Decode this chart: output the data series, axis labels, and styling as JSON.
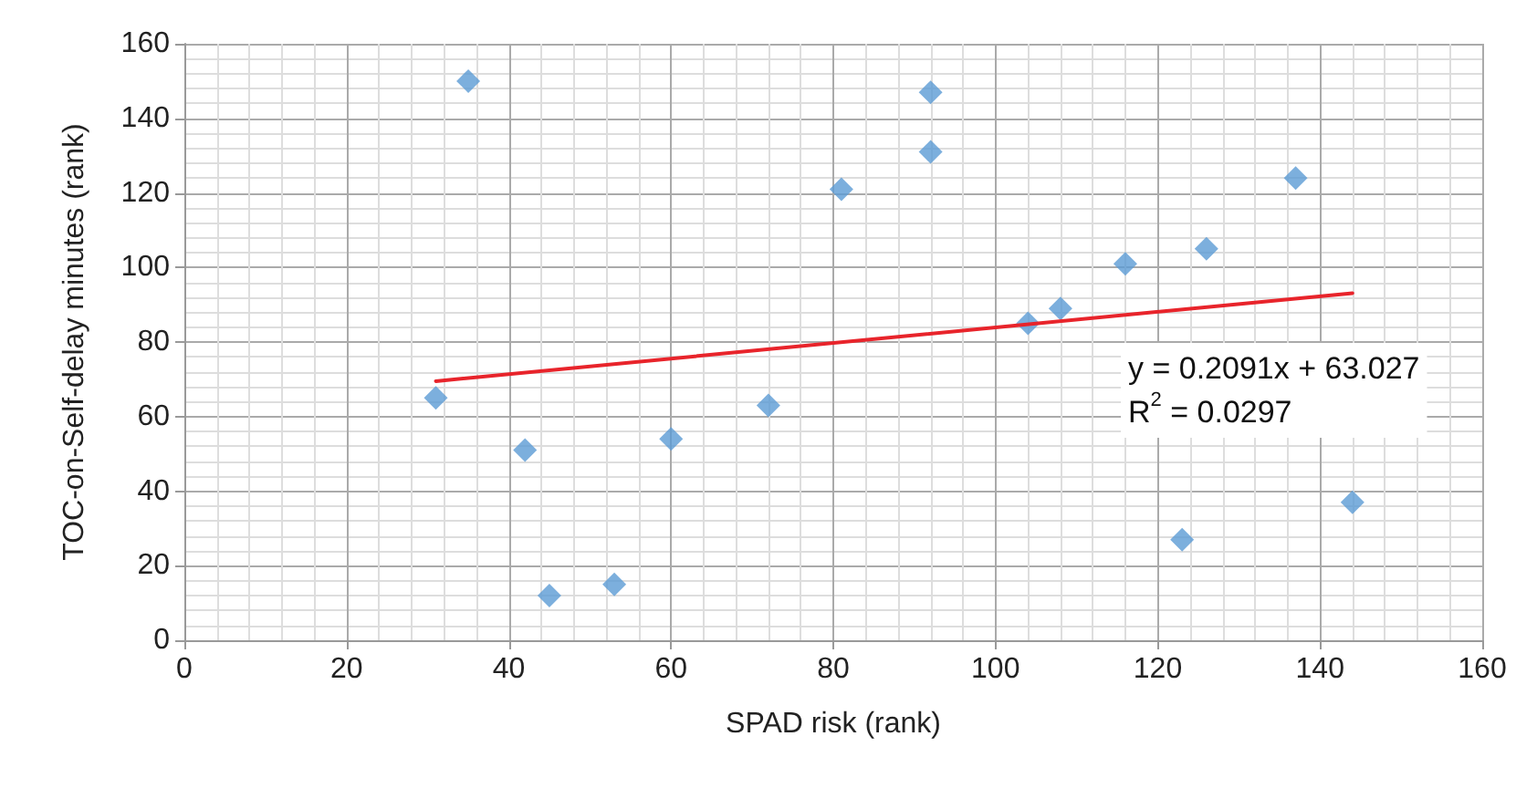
{
  "chart_data": {
    "type": "scatter",
    "xlabel": "SPAD risk (rank)",
    "ylabel": "TOC-on-Self-delay minutes (rank)",
    "xlim": [
      0,
      160
    ],
    "xticks": [
      0,
      20,
      40,
      60,
      80,
      100,
      120,
      140,
      160
    ],
    "ylim": [
      0,
      160
    ],
    "yticks": [
      0,
      20,
      40,
      60,
      80,
      100,
      120,
      140,
      160
    ],
    "grid": true,
    "marker": "diamond",
    "series": [
      {
        "color": "#5b9bd5",
        "x": [
          31,
          35,
          42,
          45,
          53,
          60,
          72,
          81,
          92,
          92,
          104,
          108,
          116,
          123,
          126,
          137,
          144
        ],
        "values": [
          65,
          150,
          51,
          12,
          15,
          54,
          63,
          121,
          147,
          131,
          85,
          89,
          101,
          27,
          105,
          124,
          37
        ]
      },
      {
        "type": "line",
        "color": "#e8242b",
        "marker": "none",
        "x": [
          31,
          144
        ],
        "values": [
          69.5,
          93.1
        ]
      }
    ],
    "annotations": [
      "y = 0.2091x + 63.027\nR$^{2}$ = 0.0297"
    ]
  }
}
